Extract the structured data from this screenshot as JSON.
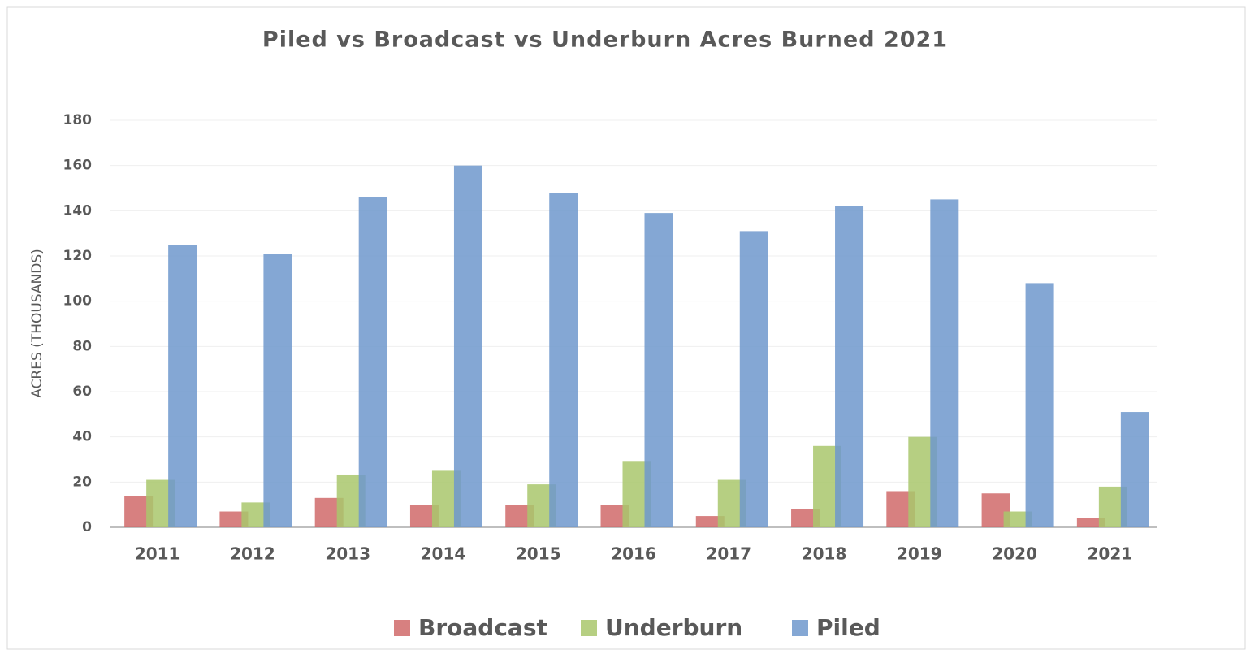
{
  "chart_data": {
    "type": "bar",
    "title": "Piled vs Broadcast vs Underburn Acres Burned 2021",
    "y_label": "ACRES (THOUSANDS)",
    "categories": [
      "2011",
      "2012",
      "2013",
      "2014",
      "2015",
      "2016",
      "2017",
      "2018",
      "2019",
      "2020",
      "2021"
    ],
    "series": [
      {
        "name": "Broadcast",
        "color": "#d06a6a",
        "values": [
          14,
          7,
          13,
          10,
          10,
          10,
          5,
          8,
          16,
          15,
          4
        ]
      },
      {
        "name": "Underburn",
        "color": "#a9c76c",
        "values": [
          21,
          11,
          23,
          25,
          19,
          29,
          21,
          36,
          40,
          7,
          18
        ]
      },
      {
        "name": "Piled",
        "color": "#6f98cc",
        "values": [
          125,
          121,
          146,
          160,
          148,
          139,
          131,
          142,
          145,
          108,
          51
        ]
      }
    ],
    "ylim": [
      0,
      180
    ],
    "yticks": [
      0,
      20,
      40,
      60,
      80,
      100,
      120,
      140,
      160,
      180
    ],
    "grid": true,
    "legend": "bottom"
  }
}
